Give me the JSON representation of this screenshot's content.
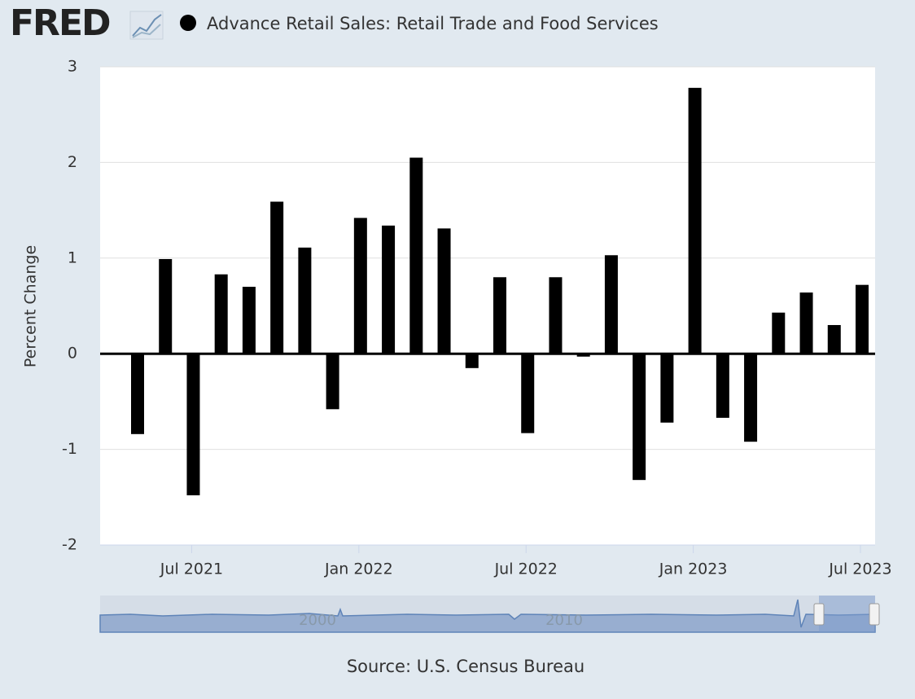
{
  "logo": "FRED",
  "chart_data": {
    "type": "bar",
    "ylabel": "Percent Change",
    "source": "Source: U.S. Census Bureau",
    "categories": [
      null,
      null,
      "Jul 2021",
      null,
      null,
      null,
      null,
      null,
      "Jan 2022",
      null,
      null,
      null,
      null,
      null,
      "Jul 2022",
      null,
      null,
      null,
      null,
      null,
      "Jan 2023",
      null,
      null,
      null,
      null,
      null,
      "Jul 2023"
    ],
    "series": [
      {
        "name": "Advance Retail Sales: Retail Trade and Food Services",
        "color": "#000000",
        "values": [
          -0.84,
          0.99,
          -1.48,
          0.83,
          0.7,
          1.59,
          1.11,
          -0.58,
          1.42,
          1.34,
          2.05,
          1.31,
          -0.15,
          0.8,
          -0.83,
          0.8,
          -0.03,
          1.03,
          -1.32,
          -0.72,
          2.78,
          -0.67,
          -0.92,
          0.43,
          0.64,
          0.3,
          0.72
        ]
      }
    ],
    "ylim": [
      -2,
      3
    ],
    "yticks": [
      -2,
      -1,
      0,
      1,
      2,
      3
    ],
    "grid": true
  },
  "navigator": {
    "labels": [
      "2000",
      "2010"
    ]
  }
}
